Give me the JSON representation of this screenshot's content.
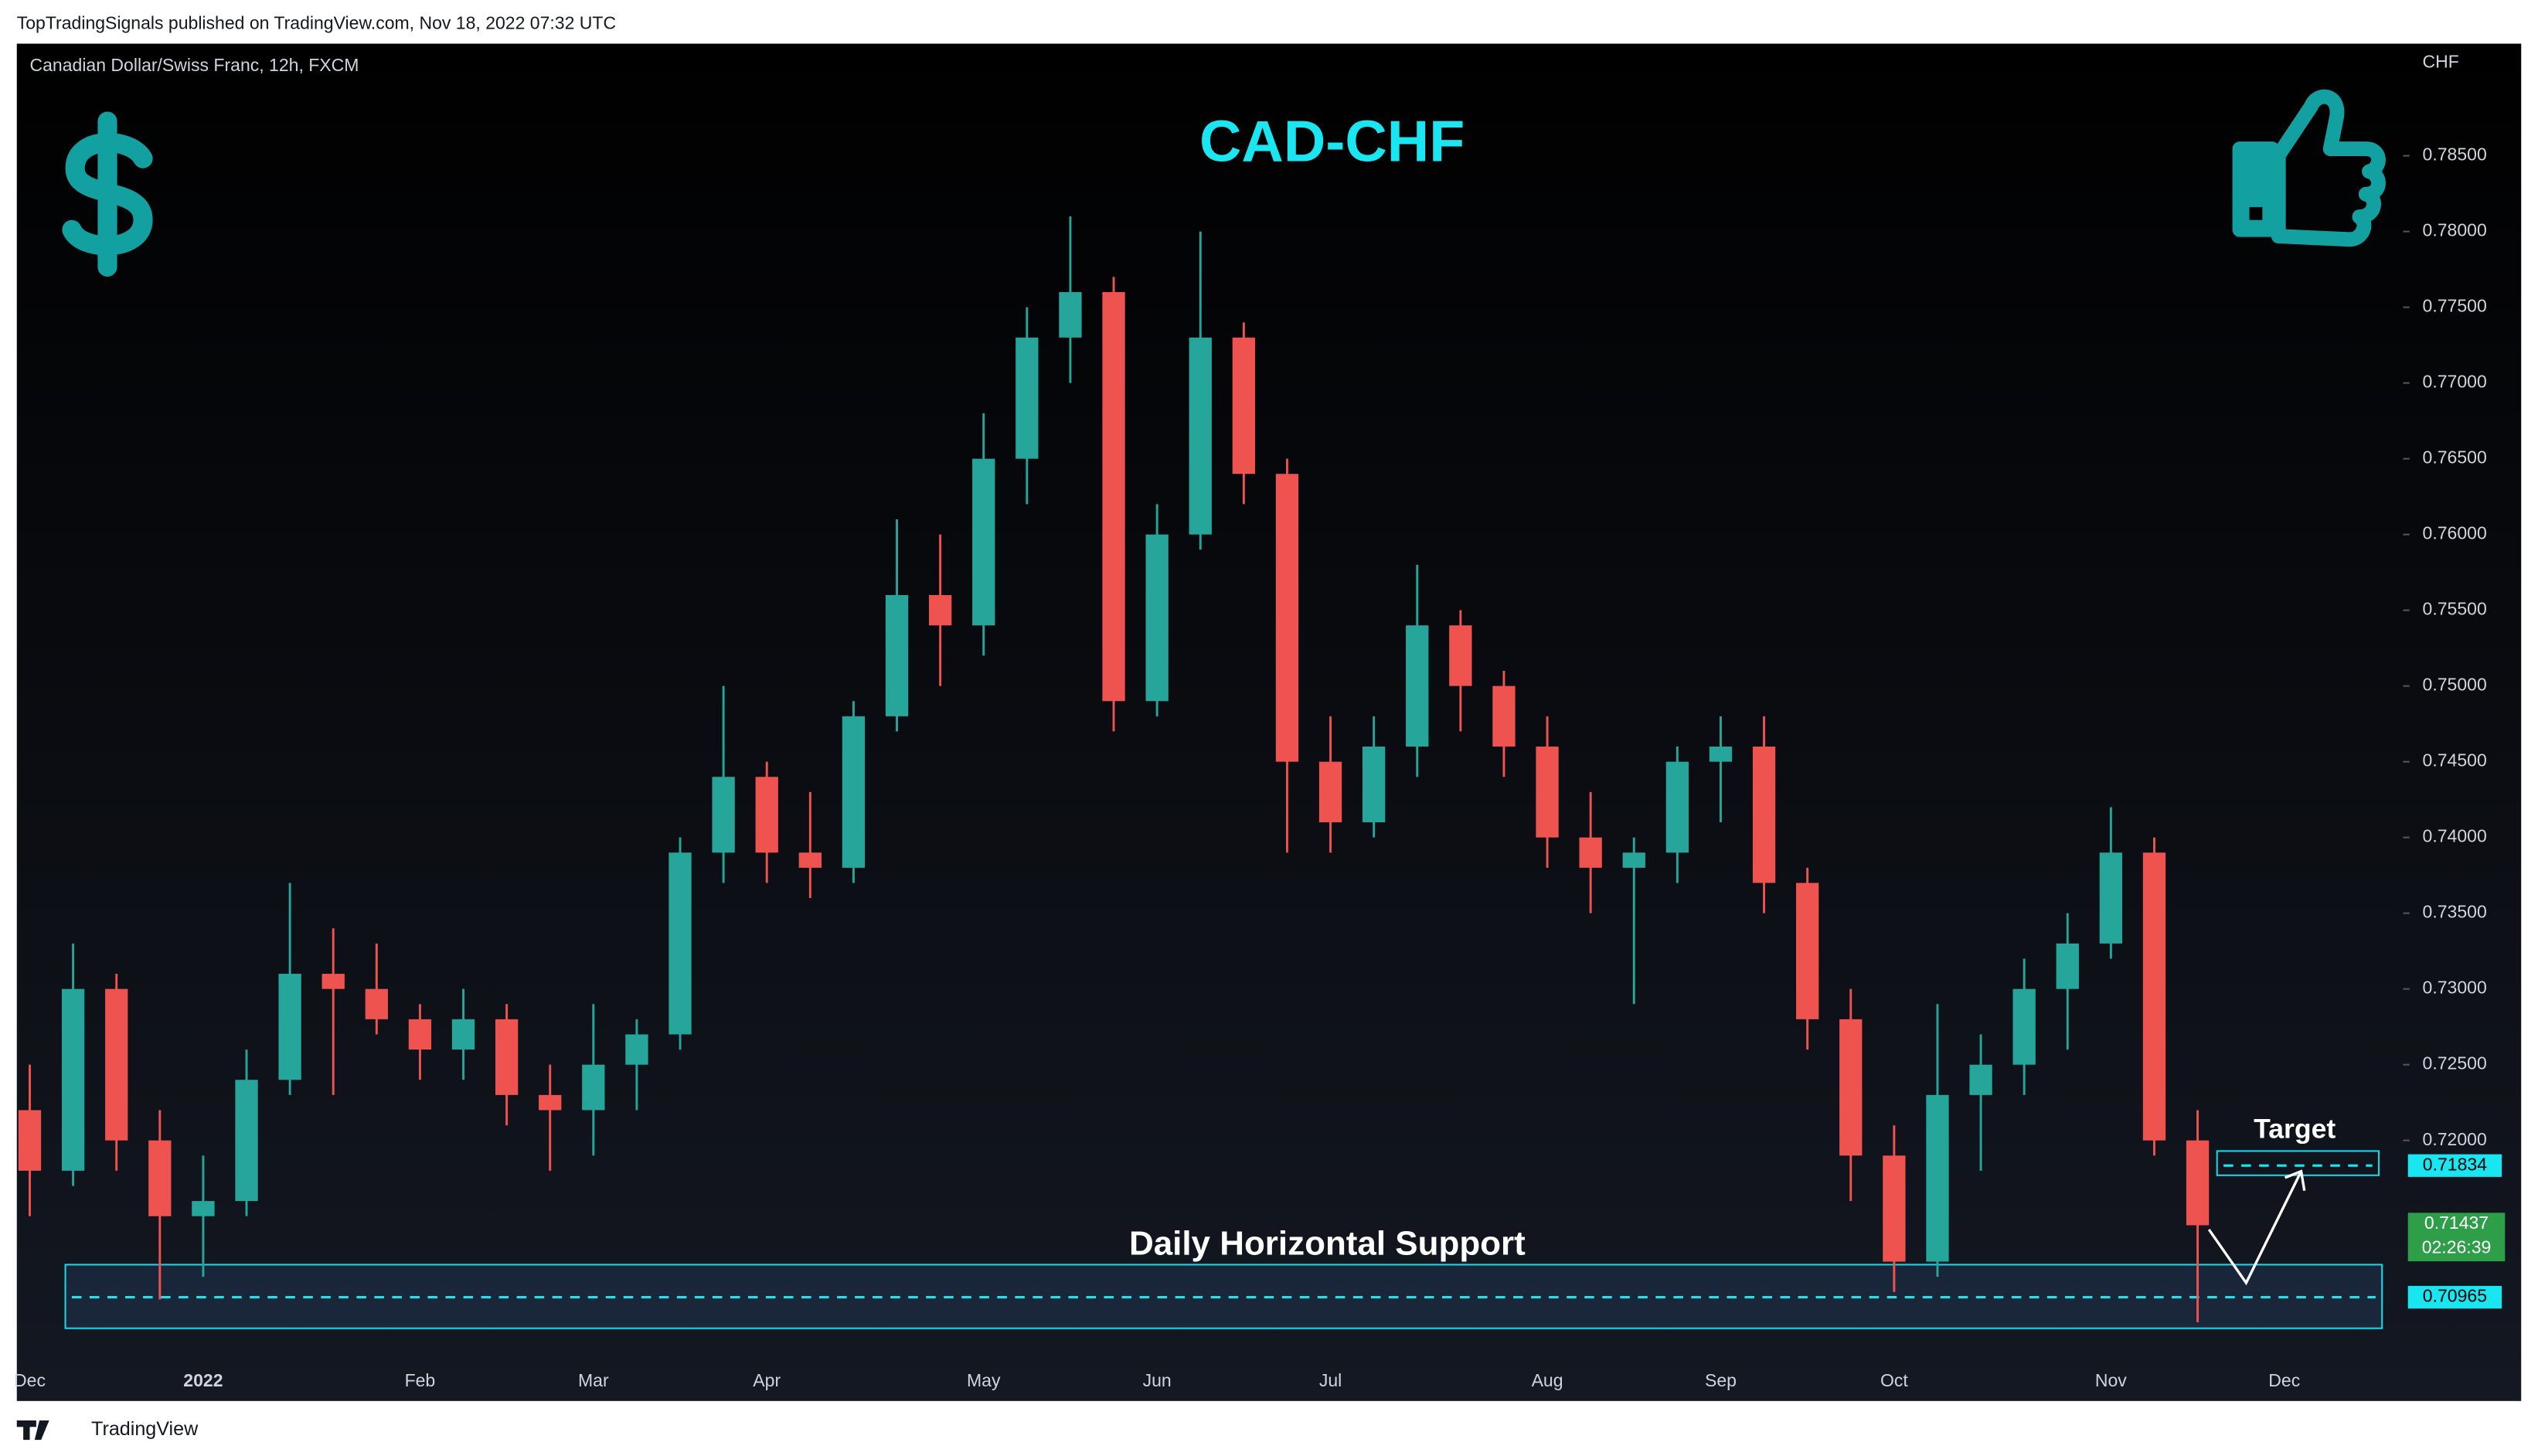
{
  "header": "TopTradingSignals published on TradingView.com, Nov 18, 2022 07:32 UTC",
  "footer": "TradingView",
  "chart_data": {
    "type": "candlestick",
    "title": "CAD-CHF",
    "subtitle": "Canadian Dollar/Swiss Franc, 12h, FXCM",
    "y_label": "CHF",
    "categories": [
      "Dec",
      null,
      null,
      null,
      "2022",
      null,
      null,
      null,
      null,
      "Feb",
      null,
      null,
      null,
      "Mar",
      null,
      null,
      null,
      "Apr",
      null,
      null,
      null,
      null,
      "May",
      null,
      null,
      null,
      "Jun",
      null,
      null,
      null,
      "Jul",
      null,
      null,
      null,
      null,
      "Aug",
      null,
      null,
      null,
      "Sep",
      null,
      null,
      null,
      "Oct",
      null,
      null,
      null,
      null,
      "Nov",
      null,
      null,
      null,
      "Dec",
      null,
      null
    ],
    "open": [
      0.722,
      0.718,
      0.73,
      0.72,
      0.715,
      0.716,
      0.724,
      0.731,
      0.73,
      0.728,
      0.726,
      0.728,
      0.723,
      0.722,
      0.725,
      0.727,
      0.739,
      0.744,
      0.739,
      0.738,
      0.748,
      0.756,
      0.754,
      0.765,
      0.773,
      0.776,
      0.749,
      0.76,
      0.773,
      0.764,
      0.745,
      0.741,
      0.746,
      0.754,
      0.75,
      0.746,
      0.74,
      0.738,
      0.739,
      0.745,
      0.746,
      0.737,
      0.728,
      0.719,
      0.712,
      0.723,
      0.725,
      0.73,
      0.733,
      0.739,
      0.72,
      null,
      null,
      null,
      null
    ],
    "high": [
      0.725,
      0.733,
      0.731,
      0.722,
      0.719,
      0.726,
      0.737,
      0.734,
      0.733,
      0.729,
      0.73,
      0.729,
      0.725,
      0.729,
      0.728,
      0.74,
      0.75,
      0.745,
      0.743,
      0.749,
      0.761,
      0.76,
      0.768,
      0.775,
      0.781,
      0.777,
      0.762,
      0.78,
      0.774,
      0.765,
      0.748,
      0.748,
      0.758,
      0.755,
      0.751,
      0.748,
      0.743,
      0.74,
      0.746,
      0.748,
      0.748,
      0.738,
      0.73,
      0.721,
      0.729,
      0.727,
      0.732,
      0.735,
      0.742,
      0.74,
      0.722,
      null,
      null,
      null,
      null
    ],
    "low": [
      0.715,
      0.717,
      0.718,
      0.7095,
      0.711,
      0.715,
      0.723,
      0.723,
      0.727,
      0.724,
      0.724,
      0.721,
      0.718,
      0.719,
      0.722,
      0.726,
      0.737,
      0.737,
      0.736,
      0.737,
      0.747,
      0.75,
      0.752,
      0.762,
      0.77,
      0.747,
      0.748,
      0.759,
      0.762,
      0.739,
      0.739,
      0.74,
      0.744,
      0.747,
      0.744,
      0.738,
      0.735,
      0.729,
      0.737,
      0.741,
      0.735,
      0.726,
      0.716,
      0.71,
      0.711,
      0.718,
      0.723,
      0.726,
      0.732,
      0.719,
      0.708,
      null,
      null,
      null,
      null
    ],
    "close": [
      0.718,
      0.73,
      0.72,
      0.715,
      0.716,
      0.724,
      0.731,
      0.73,
      0.728,
      0.726,
      0.728,
      0.723,
      0.722,
      0.725,
      0.727,
      0.739,
      0.744,
      0.739,
      0.738,
      0.748,
      0.756,
      0.754,
      0.765,
      0.773,
      0.776,
      0.749,
      0.76,
      0.773,
      0.764,
      0.745,
      0.741,
      0.746,
      0.754,
      0.75,
      0.746,
      0.74,
      0.738,
      0.739,
      0.745,
      0.746,
      0.737,
      0.728,
      0.719,
      0.712,
      0.723,
      0.725,
      0.73,
      0.733,
      0.739,
      0.72,
      0.7144,
      null,
      null,
      null,
      null
    ],
    "up_color": "#26a69a",
    "down_color": "#ef5350",
    "ylim": [
      0.7028,
      0.7924
    ],
    "yticks": [
      {
        "value": 0.72,
        "label": "0.72000"
      },
      {
        "value": 0.725,
        "label": "0.72500"
      },
      {
        "value": 0.73,
        "label": "0.73000"
      },
      {
        "value": 0.735,
        "label": "0.73500"
      },
      {
        "value": 0.74,
        "label": "0.74000"
      },
      {
        "value": 0.745,
        "label": "0.74500"
      },
      {
        "value": 0.75,
        "label": "0.75000"
      },
      {
        "value": 0.755,
        "label": "0.75500"
      },
      {
        "value": 0.76,
        "label": "0.76000"
      },
      {
        "value": 0.765,
        "label": "0.76500"
      },
      {
        "value": 0.77,
        "label": "0.77000"
      },
      {
        "value": 0.775,
        "label": "0.77500"
      },
      {
        "value": 0.78,
        "label": "0.78000"
      },
      {
        "value": 0.785,
        "label": "0.78500"
      }
    ],
    "grid": false,
    "zones": [
      {
        "text": "Daily Horizontal Support",
        "low": 0.7076,
        "high": 0.7118,
        "level": 0.70965
      },
      {
        "text": "Target",
        "low": 0.7177,
        "high": 0.7193,
        "level": 0.71834
      }
    ],
    "last_price": {
      "value": 0.71437,
      "countdown": "02:26:39"
    }
  }
}
